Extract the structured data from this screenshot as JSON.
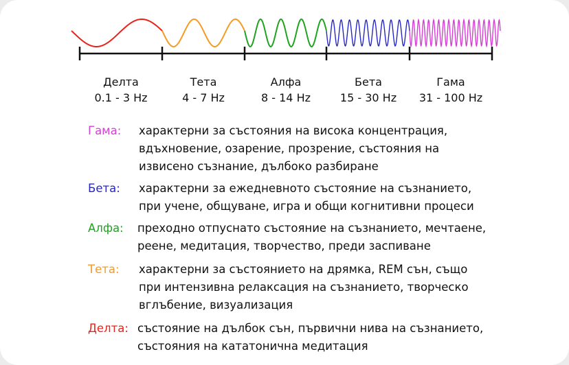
{
  "colors": {
    "delta": "#e8221b",
    "theta": "#f59a23",
    "alpha": "#1fa21f",
    "beta": "#2626c6",
    "gamma": "#d53fd3",
    "axis": "#111111"
  },
  "bands": [
    {
      "key": "delta",
      "name": "Делта",
      "freq": "0.1 - 3 Hz",
      "cycles": 1
    },
    {
      "key": "theta",
      "name": "Тета",
      "freq": "4 - 7 Hz",
      "cycles": 2
    },
    {
      "key": "alpha",
      "name": "Алфа",
      "freq": "8 - 14 Hz",
      "cycles": 4
    },
    {
      "key": "beta",
      "name": "Бета",
      "freq": "15 - 30 Hz",
      "cycles": 10
    },
    {
      "key": "gamma",
      "name": "Гама",
      "freq": "31 - 100 Hz",
      "cycles": 18
    }
  ],
  "descriptions": [
    {
      "key": "gamma",
      "term": "Гама:",
      "lines": [
        "характерни за състояния на висока концентрация,",
        "вдъхновение, озарение, прозрение, състояния на",
        "извисено съзнание, дълбоко разбиране"
      ]
    },
    {
      "key": "beta",
      "term": "Бета:",
      "lines": [
        "характерни за ежедневното състояние на съзнанието,",
        "при учене, общуване, игра и общи когнитивни процеси"
      ]
    },
    {
      "key": "alpha",
      "term": "Алфа:",
      "lines": [
        "преходно отпуснато състояние на съзнанието, мечтаене,",
        "реене, медитация, творчество, преди заспиване"
      ]
    },
    {
      "key": "theta",
      "term": "Тета:",
      "lines": [
        "характерни за състоянието на дрямка, REM сън, също",
        "при интензивна релаксация на съзнанието, творческо",
        "вглъбение, визуализация"
      ]
    },
    {
      "key": "delta",
      "term": "Делта:",
      "lines": [
        "състояние на дълбок сън, първични нива на съзнанието,",
        "състояния на кататонична медитация"
      ]
    }
  ]
}
